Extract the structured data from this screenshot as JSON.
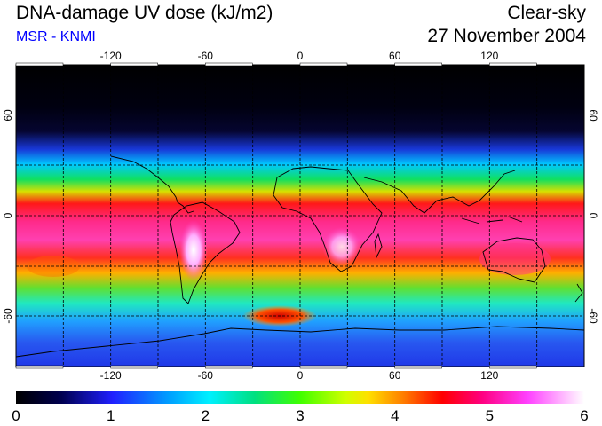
{
  "header": {
    "title": "DNA-damage UV dose (kJ/m2)",
    "subtitle": "MSR - KNMI",
    "mode": "Clear-sky",
    "date": "27 November 2004"
  },
  "axes": {
    "lon_ticks": [
      "-120",
      "-60",
      "0",
      "60",
      "120"
    ],
    "lat_ticks_left": [
      "60",
      "0",
      "-60"
    ],
    "lat_ticks_right": [
      "60",
      "0",
      "-60"
    ]
  },
  "colorbar": {
    "ticks": [
      "0",
      "1",
      "2",
      "3",
      "4",
      "5",
      "6"
    ],
    "range": [
      0,
      6
    ]
  },
  "colors": {
    "accent": "#0000ff"
  }
}
